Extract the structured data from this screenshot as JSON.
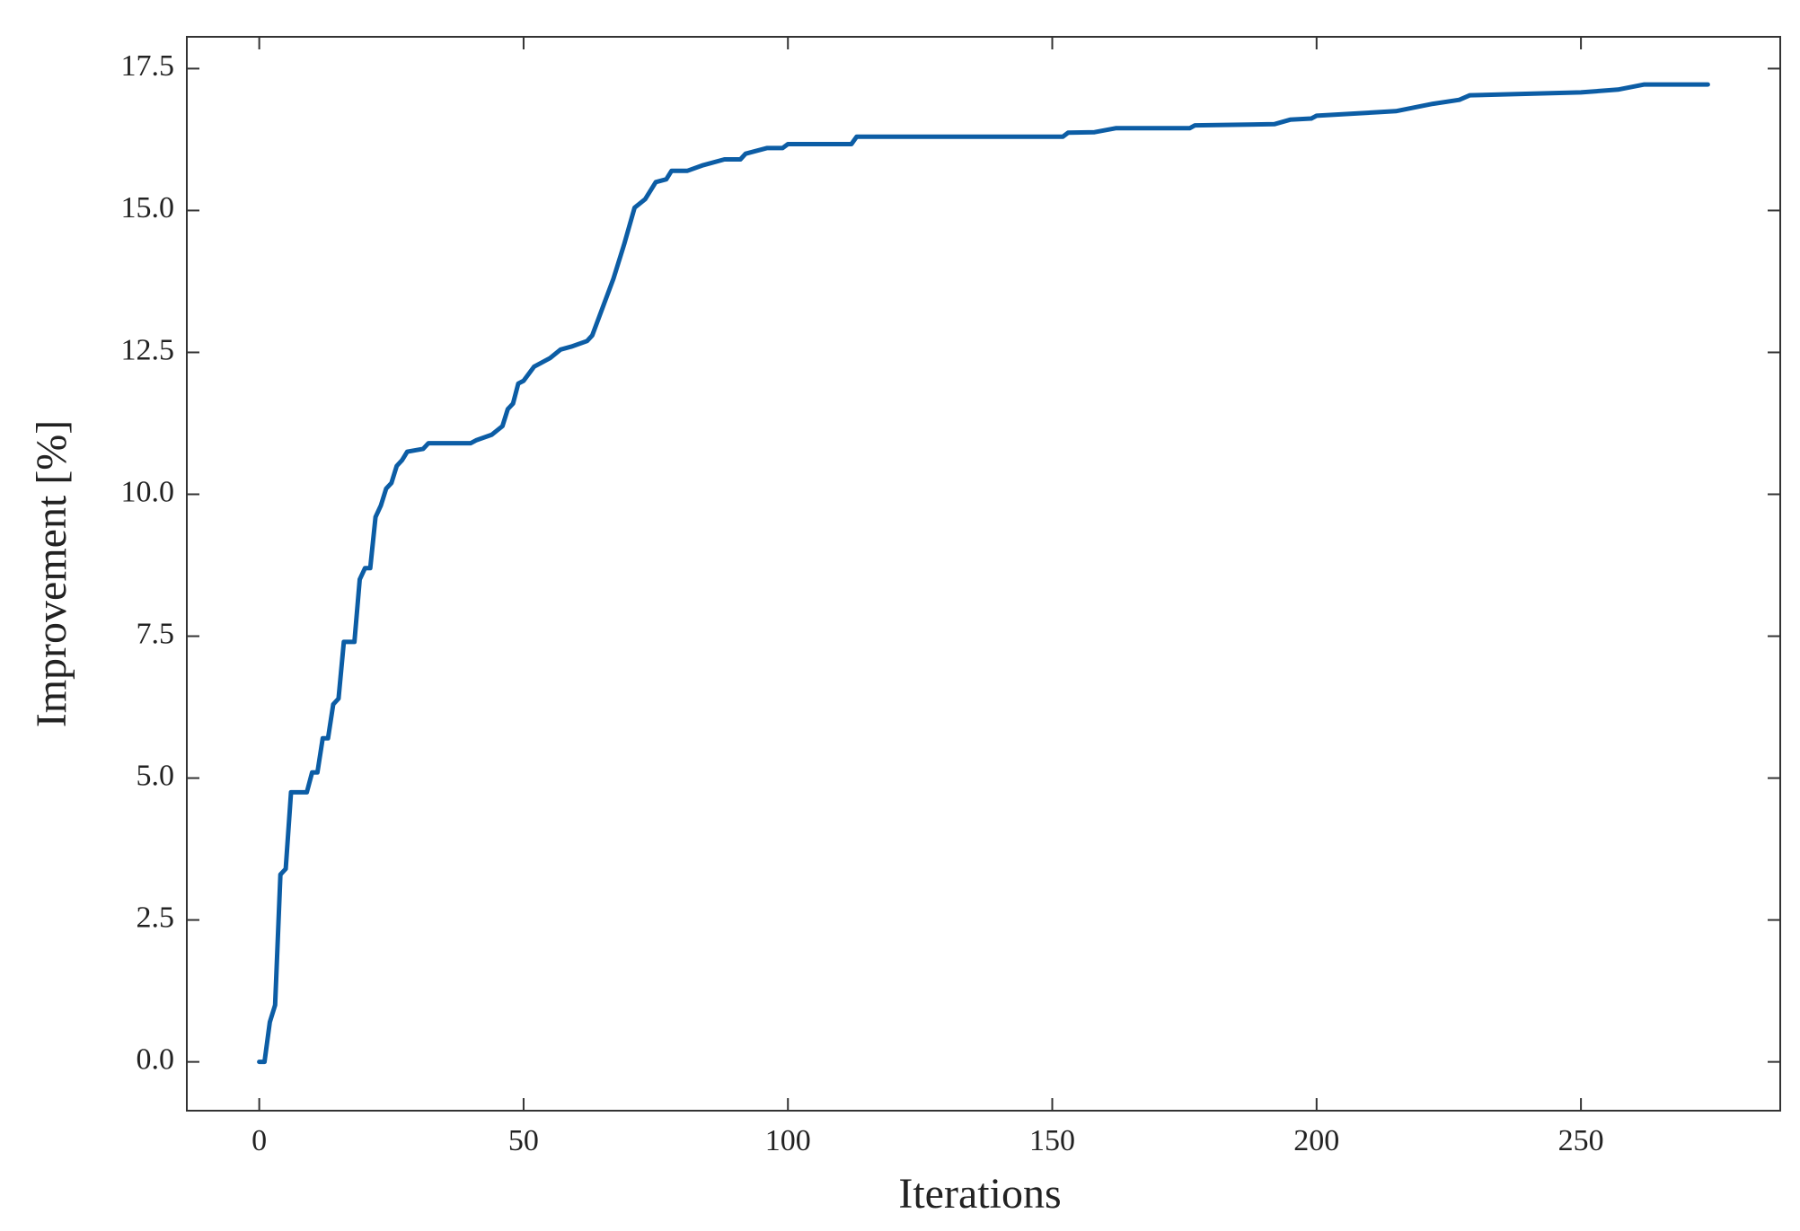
{
  "chart_data": {
    "type": "line",
    "x_label": "Iterations",
    "y_label": "Improvement [%]",
    "x": [
      0,
      1,
      2,
      3,
      4,
      5,
      6,
      9,
      10,
      11,
      12,
      13,
      14,
      15,
      16,
      18,
      19,
      20,
      21,
      22,
      23,
      24,
      25,
      26,
      27,
      28,
      31,
      32,
      40,
      41,
      44,
      46,
      47,
      48,
      49,
      50,
      52,
      55,
      57,
      59,
      62,
      63,
      65,
      67,
      69,
      71,
      73,
      75,
      77,
      78,
      81,
      84,
      88,
      91,
      92,
      96,
      99,
      100,
      112,
      113,
      152,
      153,
      158,
      162,
      176,
      177,
      192,
      195,
      199,
      200,
      215,
      222,
      227,
      229,
      250,
      257,
      262,
      274
    ],
    "series": [
      {
        "color": "#0C5DA5",
        "values": [
          0,
          0,
          0.7,
          1.0,
          3.3,
          3.4,
          4.75,
          4.75,
          5.1,
          5.1,
          5.7,
          5.7,
          6.3,
          6.4,
          7.4,
          7.4,
          8.5,
          8.7,
          8.7,
          9.6,
          9.8,
          10.1,
          10.2,
          10.5,
          10.6,
          10.75,
          10.8,
          10.9,
          10.9,
          10.95,
          11.05,
          11.2,
          11.5,
          11.6,
          11.95,
          12.0,
          12.25,
          12.4,
          12.55,
          12.6,
          12.7,
          12.8,
          13.3,
          13.8,
          14.4,
          15.05,
          15.2,
          15.5,
          15.55,
          15.7,
          15.7,
          15.8,
          15.9,
          15.9,
          16.0,
          16.1,
          16.1,
          16.17,
          16.17,
          16.3,
          16.3,
          16.37,
          16.38,
          16.45,
          16.45,
          16.5,
          16.52,
          16.6,
          16.62,
          16.67,
          16.75,
          16.88,
          16.95,
          17.03,
          17.08,
          17.13,
          17.22,
          17.22
        ]
      }
    ],
    "xlim": [
      -13.7,
      287.7
    ],
    "ylim": [
      -0.86,
      18.06
    ],
    "xticks": [
      0,
      50,
      100,
      150,
      200,
      250
    ],
    "yticks": [
      {
        "value": 0,
        "label": "0.0"
      },
      2.5,
      {
        "value": 5,
        "label": "5.0"
      },
      7.5,
      {
        "value": 10,
        "label": "10.0"
      },
      12.5,
      {
        "value": 15,
        "label": "15.0"
      },
      17.5
    ]
  }
}
